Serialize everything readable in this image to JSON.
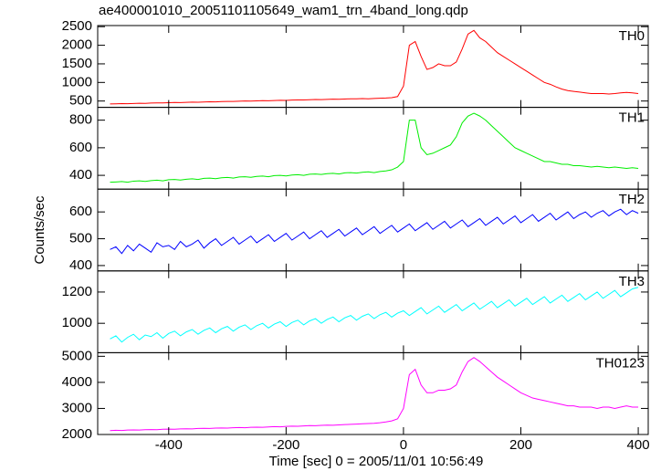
{
  "chart_data": {
    "type": "line",
    "title": "ae400001010_20051101105649_wam1_trn_4band_long.qdp",
    "xlabel": "Time [sec] 0 = 2005/11/01 10:56:49",
    "ylabel": "Counts/sec",
    "xlim": [
      -521,
      417
    ],
    "xticks": [
      -400,
      -200,
      0,
      200,
      400
    ],
    "x": [
      -500,
      -490,
      -480,
      -470,
      -460,
      -450,
      -440,
      -430,
      -420,
      -410,
      -400,
      -390,
      -380,
      -370,
      -360,
      -350,
      -340,
      -330,
      -320,
      -310,
      -300,
      -290,
      -280,
      -270,
      -260,
      -250,
      -240,
      -230,
      -220,
      -210,
      -200,
      -190,
      -180,
      -170,
      -160,
      -150,
      -140,
      -130,
      -120,
      -110,
      -100,
      -90,
      -80,
      -70,
      -60,
      -50,
      -40,
      -30,
      -20,
      -10,
      0,
      10,
      20,
      30,
      40,
      50,
      60,
      70,
      80,
      90,
      100,
      110,
      120,
      130,
      140,
      150,
      160,
      170,
      180,
      190,
      200,
      210,
      220,
      230,
      240,
      250,
      260,
      270,
      280,
      290,
      300,
      310,
      320,
      330,
      340,
      350,
      360,
      370,
      380,
      390,
      400
    ],
    "series": [
      {
        "name": "TH0",
        "color": "#ff0000",
        "ylim": [
          330,
          2530
        ],
        "yticks": [
          500,
          1000,
          1500,
          2000,
          2500
        ],
        "values": [
          420,
          425,
          430,
          428,
          435,
          440,
          438,
          445,
          450,
          448,
          455,
          460,
          458,
          465,
          470,
          468,
          475,
          480,
          478,
          485,
          490,
          488,
          495,
          500,
          498,
          505,
          510,
          508,
          515,
          520,
          518,
          525,
          530,
          528,
          535,
          540,
          538,
          545,
          550,
          548,
          555,
          560,
          558,
          565,
          560,
          570,
          575,
          580,
          590,
          620,
          900,
          2000,
          2100,
          1700,
          1350,
          1400,
          1500,
          1450,
          1450,
          1550,
          1900,
          2300,
          2400,
          2200,
          2100,
          1950,
          1800,
          1700,
          1600,
          1500,
          1400,
          1300,
          1200,
          1100,
          1000,
          950,
          880,
          820,
          780,
          760,
          740,
          720,
          700,
          700,
          700,
          690,
          700,
          720,
          730,
          720,
          700
        ]
      },
      {
        "name": "TH1",
        "color": "#00ee00",
        "ylim": [
          300,
          893
        ],
        "yticks": [
          400,
          600,
          800
        ],
        "values": [
          350,
          352,
          355,
          350,
          358,
          360,
          356,
          362,
          365,
          360,
          368,
          370,
          366,
          372,
          375,
          370,
          378,
          380,
          376,
          382,
          385,
          380,
          388,
          390,
          386,
          392,
          395,
          390,
          398,
          400,
          396,
          402,
          405,
          400,
          408,
          410,
          406,
          412,
          415,
          410,
          418,
          420,
          416,
          422,
          425,
          420,
          428,
          432,
          440,
          460,
          500,
          800,
          800,
          600,
          550,
          560,
          580,
          600,
          620,
          680,
          780,
          830,
          850,
          830,
          800,
          760,
          720,
          680,
          640,
          600,
          580,
          560,
          540,
          520,
          500,
          500,
          490,
          480,
          480,
          470,
          470,
          465,
          460,
          465,
          460,
          455,
          460,
          455,
          450,
          455,
          450
        ]
      },
      {
        "name": "TH2",
        "color": "#0000ff",
        "ylim": [
          380,
          685
        ],
        "yticks": [
          400,
          500,
          600
        ],
        "values": [
          460,
          470,
          445,
          475,
          455,
          480,
          465,
          450,
          485,
          470,
          475,
          460,
          490,
          470,
          480,
          495,
          465,
          485,
          500,
          475,
          490,
          505,
          480,
          495,
          510,
          485,
          500,
          515,
          490,
          505,
          520,
          495,
          510,
          525,
          500,
          515,
          530,
          505,
          520,
          535,
          510,
          525,
          540,
          515,
          530,
          545,
          520,
          535,
          550,
          525,
          540,
          555,
          530,
          545,
          560,
          535,
          550,
          565,
          540,
          555,
          570,
          545,
          560,
          575,
          550,
          565,
          580,
          555,
          570,
          585,
          560,
          575,
          590,
          565,
          580,
          595,
          570,
          585,
          600,
          575,
          590,
          600,
          580,
          595,
          605,
          585,
          600,
          610,
          590,
          605,
          595
        ]
      },
      {
        "name": "TH3",
        "color": "#00ffff",
        "ylim": [
          812,
          1335
        ],
        "yticks": [
          1000,
          1200
        ],
        "values": [
          900,
          920,
          880,
          910,
          930,
          895,
          925,
          915,
          940,
          905,
          935,
          950,
          920,
          945,
          960,
          930,
          955,
          970,
          940,
          965,
          980,
          950,
          975,
          990,
          960,
          985,
          1000,
          970,
          995,
          1010,
          980,
          1005,
          1020,
          990,
          1015,
          1030,
          1000,
          1025,
          1040,
          1010,
          1035,
          1050,
          1020,
          1045,
          1060,
          1030,
          1055,
          1070,
          1040,
          1065,
          1080,
          1050,
          1075,
          1100,
          1060,
          1085,
          1110,
          1070,
          1095,
          1120,
          1080,
          1105,
          1130,
          1090,
          1115,
          1140,
          1100,
          1125,
          1150,
          1110,
          1135,
          1160,
          1120,
          1145,
          1170,
          1130,
          1155,
          1180,
          1140,
          1165,
          1190,
          1150,
          1175,
          1200,
          1160,
          1185,
          1210,
          1170,
          1195,
          1220,
          1230
        ]
      },
      {
        "name": "TH0123",
        "color": "#ff00ff",
        "ylim": [
          2000,
          5138
        ],
        "yticks": [
          2000,
          3000,
          4000,
          5000
        ],
        "values": [
          2150,
          2160,
          2155,
          2170,
          2175,
          2170,
          2185,
          2190,
          2185,
          2200,
          2205,
          2200,
          2215,
          2220,
          2215,
          2230,
          2235,
          2230,
          2245,
          2250,
          2245,
          2260,
          2265,
          2260,
          2275,
          2280,
          2275,
          2290,
          2300,
          2295,
          2310,
          2320,
          2315,
          2330,
          2340,
          2335,
          2350,
          2360,
          2355,
          2370,
          2380,
          2390,
          2400,
          2410,
          2420,
          2430,
          2450,
          2480,
          2520,
          2600,
          3000,
          4300,
          4500,
          3900,
          3600,
          3600,
          3700,
          3700,
          3750,
          3900,
          4400,
          4800,
          4950,
          4800,
          4600,
          4400,
          4200,
          4050,
          3900,
          3750,
          3600,
          3500,
          3400,
          3350,
          3300,
          3250,
          3200,
          3150,
          3100,
          3100,
          3050,
          3050,
          3050,
          3000,
          3050,
          3050,
          3000,
          3050,
          3100,
          3050,
          3050
        ]
      }
    ]
  }
}
